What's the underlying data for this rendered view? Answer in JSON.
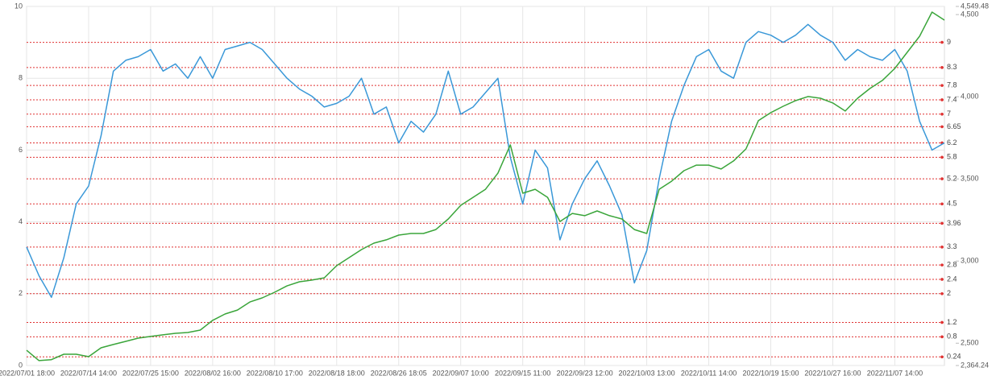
{
  "chart_data": {
    "type": "line",
    "categories": [
      "2022/07/01 18:00",
      null,
      null,
      null,
      null,
      "2022/07/14 14:00",
      null,
      null,
      null,
      null,
      "2022/07/25 15:00",
      null,
      null,
      null,
      null,
      "2022/08/02 16:00",
      null,
      null,
      null,
      null,
      "2022/08/10 17:00",
      null,
      null,
      null,
      null,
      "2022/08/18 18:00",
      null,
      null,
      null,
      null,
      "2022/08/26 18:05",
      null,
      null,
      null,
      null,
      "2022/09/07 10:00",
      null,
      null,
      null,
      null,
      "2022/09/15 11:00",
      null,
      null,
      null,
      null,
      "2022/09/23 12:00",
      null,
      null,
      null,
      null,
      "2022/10/03 13:00",
      null,
      null,
      null,
      null,
      "2022/10/11 14:00",
      null,
      null,
      null,
      null,
      "2022/10/19 15:00",
      null,
      null,
      null,
      null,
      "2022/10/27 16:00",
      null,
      null,
      null,
      null,
      "2022/11/07 14:00",
      null,
      null,
      null,
      null
    ],
    "series": [
      {
        "color": "#3a98d8",
        "values": [
          3.3,
          2.5,
          1.9,
          3.0,
          4.5,
          5.0,
          6.4,
          8.2,
          8.5,
          8.6,
          8.8,
          8.2,
          8.4,
          8.0,
          8.6,
          8.0,
          8.8,
          8.9,
          9.0,
          8.8,
          8.4,
          8.0,
          7.7,
          7.5,
          7.2,
          7.3,
          7.5,
          8.0,
          7.0,
          7.2,
          6.2,
          6.8,
          6.5,
          7.0,
          8.2,
          7.0,
          7.2,
          7.6,
          8.0,
          5.8,
          4.5,
          6.0,
          5.5,
          3.5,
          4.5,
          5.2,
          5.7,
          5.0,
          4.2,
          2.3,
          3.2,
          5.2,
          6.8,
          7.8,
          8.6,
          8.8,
          8.2,
          8.0,
          9.0,
          9.3,
          9.2,
          9.0,
          9.2,
          9.5,
          9.2,
          9.0,
          8.5,
          8.8,
          8.6,
          8.5,
          8.8,
          8.2,
          6.8,
          6.0,
          6.2
        ]
      },
      {
        "color": "#3aa53a",
        "axis": "y2",
        "values": [
          2457,
          2394,
          2400,
          2433,
          2433,
          2418,
          2472,
          2492,
          2511,
          2531,
          2541,
          2551,
          2560,
          2565,
          2580,
          2639,
          2678,
          2702,
          2751,
          2776,
          2810,
          2849,
          2874,
          2884,
          2898,
          2972,
          3021,
          3070,
          3109,
          3129,
          3158,
          3168,
          3168,
          3192,
          3256,
          3339,
          3388,
          3437,
          3535,
          3707,
          3413,
          3437,
          3388,
          3241,
          3290,
          3276,
          3305,
          3276,
          3256,
          3192,
          3168,
          3437,
          3486,
          3550,
          3584,
          3584,
          3560,
          3609,
          3682,
          3854,
          3903,
          3942,
          3976,
          4001,
          3991,
          3962,
          3913,
          3991,
          4050,
          4099,
          4172,
          4270,
          4368,
          4515,
          4466
        ]
      }
    ],
    "ylim": [
      0,
      10
    ],
    "yticks": [
      0,
      2,
      4,
      6,
      8,
      10
    ],
    "y2lim": [
      2364.24,
      4549.48
    ],
    "y2ticks": [
      {
        "value": 2364.24,
        "label": "2,364.24"
      },
      {
        "value": 2500,
        "label": "2,500"
      },
      {
        "value": 3000,
        "label": "3,000"
      },
      {
        "value": 3500,
        "label": "3,500"
      },
      {
        "value": 4000,
        "label": "4,000"
      },
      {
        "value": 4500,
        "label": "4,500"
      },
      {
        "value": 4549.48,
        "label": "4,549.48"
      }
    ],
    "reference_lines": [
      9,
      8.3,
      7.8,
      7.4,
      7,
      6.65,
      6.2,
      5.8,
      5.2,
      4.5,
      3.96,
      3.3,
      2.8,
      2.4,
      2,
      1.2,
      0.8,
      0.24
    ],
    "reference_color": "#e03030",
    "grid": true
  }
}
